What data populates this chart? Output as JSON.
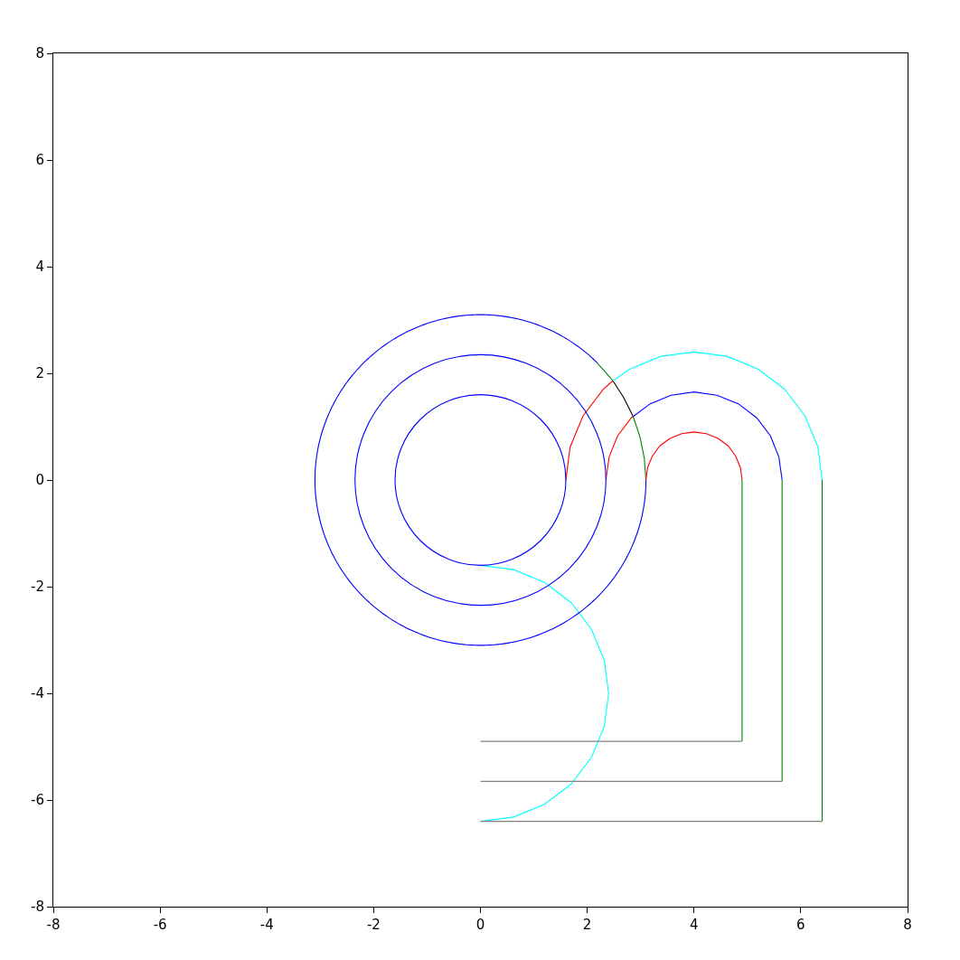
{
  "chart_data": {
    "type": "line",
    "xlim": [
      -8,
      8
    ],
    "ylim": [
      -8,
      8
    ],
    "xticks": [
      -8,
      -6,
      -4,
      -2,
      0,
      2,
      4,
      6,
      8
    ],
    "yticks": [
      -8,
      -6,
      -4,
      -2,
      0,
      2,
      4,
      6,
      8
    ],
    "grid": false,
    "legend": false,
    "marker": "none",
    "line_style": "solid",
    "series": [
      {
        "color": "#008000",
        "x": [
          2.19,
          2.37,
          2.48
        ],
        "values": [
          2.19,
          1.99,
          1.86
        ]
      },
      {
        "color": "#000000",
        "x": [
          2.48,
          2.68,
          2.86
        ],
        "values": [
          1.86,
          1.55,
          1.19
        ]
      },
      {
        "color": "#008000",
        "x": [
          2.86,
          2.99,
          3.07,
          3.1
        ],
        "values": [
          1.19,
          0.8,
          0.4,
          0
        ]
      },
      {
        "color": "#ff0000",
        "x": [
          3.1,
          3.13,
          3.22,
          3.36,
          3.55,
          3.77,
          4,
          4.23,
          4.45,
          4.64,
          4.78,
          4.87,
          4.9
        ],
        "values": [
          0,
          0.23,
          0.45,
          0.64,
          0.78,
          0.87,
          0.9,
          0.87,
          0.78,
          0.64,
          0.45,
          0.23,
          0
        ]
      },
      {
        "color": "#ff0000",
        "x": [
          2.35,
          2.41,
          2.57,
          2.83,
          2.86
        ],
        "values": [
          0,
          0.43,
          0.83,
          1.17,
          1.19
        ]
      },
      {
        "color": "#0000ff",
        "x": [
          2.86,
          3.18,
          3.57,
          4,
          4.43,
          4.83,
          5.17,
          5.43,
          5.59,
          5.65
        ],
        "values": [
          1.19,
          1.43,
          1.59,
          1.65,
          1.59,
          1.43,
          1.17,
          0.83,
          0.43,
          0
        ]
      },
      {
        "color": "#ff0000",
        "x": [
          1.6,
          1.68,
          1.92,
          2.3,
          2.48
        ],
        "values": [
          0,
          0.62,
          1.2,
          1.7,
          1.86
        ]
      },
      {
        "color": "#00ffff",
        "x": [
          2.48,
          2.8,
          3.38,
          4,
          4.62,
          5.2,
          5.7,
          6.08,
          6.32,
          6.4
        ],
        "values": [
          1.86,
          2.08,
          2.32,
          2.4,
          2.32,
          2.08,
          1.7,
          1.2,
          0.62,
          0
        ]
      },
      {
        "color": "#00ffff",
        "x": [
          0,
          0.62,
          1.2,
          1.7,
          2.08,
          2.32,
          2.4,
          2.32,
          2.08,
          1.7,
          1.2,
          0.62,
          0
        ],
        "values": [
          -1.6,
          -1.68,
          -1.92,
          -2.3,
          -2.8,
          -3.38,
          -4,
          -4.62,
          -5.2,
          -5.7,
          -6.08,
          -6.32,
          -6.4
        ]
      },
      {
        "color": "#008000",
        "x": [
          4.9,
          4.9
        ],
        "values": [
          0,
          -4.9
        ]
      },
      {
        "color": "#008000",
        "x": [
          5.65,
          5.65
        ],
        "values": [
          0,
          -5.65
        ]
      },
      {
        "color": "#008000",
        "x": [
          6.4,
          6.4
        ],
        "values": [
          0,
          -6.4
        ]
      },
      {
        "color": "#808080",
        "x": [
          0,
          4.9
        ],
        "values": [
          -4.9,
          -4.9
        ]
      },
      {
        "color": "#808080",
        "x": [
          0,
          5.65
        ],
        "values": [
          -5.65,
          -5.65
        ]
      },
      {
        "color": "#808080",
        "x": [
          0,
          6.4
        ],
        "values": [
          -6.4,
          -6.4
        ]
      }
    ]
  }
}
